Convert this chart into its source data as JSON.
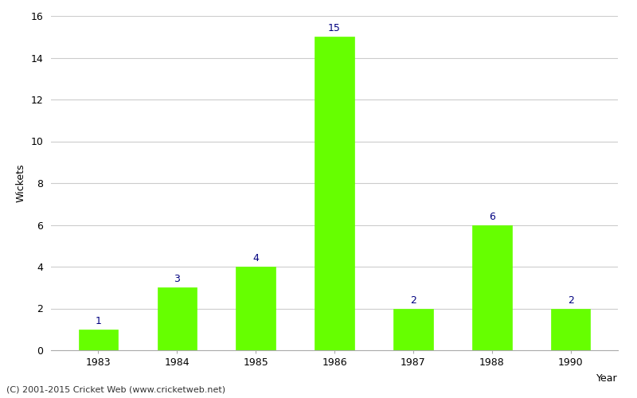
{
  "years": [
    "1983",
    "1984",
    "1985",
    "1986",
    "1987",
    "1988",
    "1990"
  ],
  "wickets": [
    1,
    3,
    4,
    15,
    2,
    6,
    2
  ],
  "bar_color": "#66ff00",
  "bar_edge_color": "#66ff00",
  "label_color": "#000080",
  "ylabel": "Wickets",
  "xlabel": "Year",
  "ylim": [
    0,
    16
  ],
  "yticks": [
    0,
    2,
    4,
    6,
    8,
    10,
    12,
    14,
    16
  ],
  "footer": "(C) 2001-2015 Cricket Web (www.cricketweb.net)",
  "background_color": "#ffffff",
  "grid_color": "#cccccc",
  "label_fontsize": 9,
  "axis_fontsize": 9,
  "footer_fontsize": 8
}
